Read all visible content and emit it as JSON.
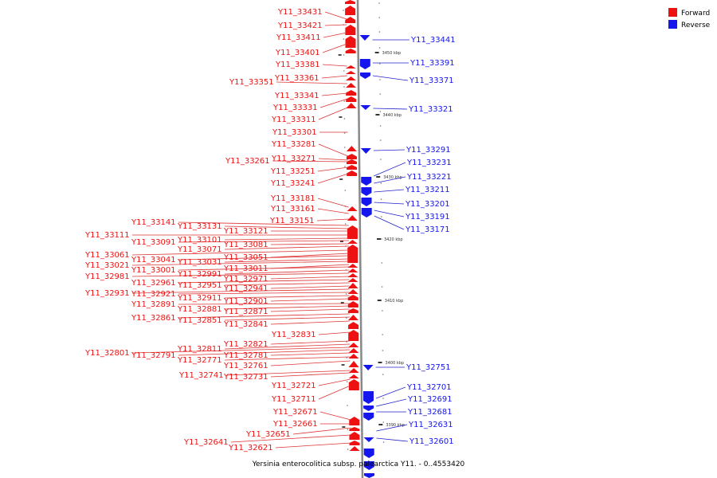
{
  "caption": "Yersinia enterocolitica subsp. palearctica Y11. - 0..4553420",
  "colors": {
    "forward": "#ee1111",
    "reverse": "#1515ee",
    "leader_forward": "#dd3333",
    "leader_reverse": "#2222cc"
  },
  "legend": [
    {
      "label": "Forward",
      "color": "#ee1111"
    },
    {
      "label": "Reverse",
      "color": "#1515ee"
    }
  ],
  "ticks": [
    "3450 kbp",
    "3440 kbp",
    "3430 kbp",
    "3420 kbp",
    "3410 kbp",
    "3400 kbp",
    "3390 kbp"
  ],
  "forward_genes": [
    "Y11_33431",
    "Y11_33421",
    "Y11_33411",
    "Y11_33401",
    "Y11_33381",
    "Y11_33361",
    "Y11_33351",
    "Y11_33341",
    "Y11_33331",
    "Y11_33311",
    "Y11_33301",
    "Y11_33281",
    "Y11_33271",
    "Y11_33261",
    "Y11_33251",
    "Y11_33241",
    "Y11_33181",
    "Y11_33161",
    "Y11_33151",
    "Y11_33141",
    "Y11_33131",
    "Y11_33121",
    "Y11_33111",
    "Y11_33101",
    "Y11_33091",
    "Y11_33081",
    "Y11_33071",
    "Y11_33061",
    "Y11_33051",
    "Y11_33041",
    "Y11_33031",
    "Y11_33021",
    "Y11_33011",
    "Y11_33001",
    "Y11_32991",
    "Y11_32981",
    "Y11_32971",
    "Y11_32961",
    "Y11_32951",
    "Y11_32941",
    "Y11_32931",
    "Y11_32921",
    "Y11_32911",
    "Y11_32901",
    "Y11_32891",
    "Y11_32881",
    "Y11_32871",
    "Y11_32861",
    "Y11_32851",
    "Y11_32841",
    "Y11_32831",
    "Y11_32821",
    "Y11_32811",
    "Y11_32801",
    "Y11_32791",
    "Y11_32781",
    "Y11_32771",
    "Y11_32761",
    "Y11_32741",
    "Y11_32731",
    "Y11_32721",
    "Y11_32711",
    "Y11_32671",
    "Y11_32661",
    "Y11_32651",
    "Y11_32641",
    "Y11_32621"
  ],
  "reverse_genes": [
    "Y11_33441",
    "Y11_33391",
    "Y11_33371",
    "Y11_33321",
    "Y11_33291",
    "Y11_33231",
    "Y11_33221",
    "Y11_33211",
    "Y11_33201",
    "Y11_33191",
    "Y11_33171",
    "Y11_32751",
    "Y11_32701",
    "Y11_32691",
    "Y11_32681",
    "Y11_32631",
    "Y11_32601"
  ]
}
